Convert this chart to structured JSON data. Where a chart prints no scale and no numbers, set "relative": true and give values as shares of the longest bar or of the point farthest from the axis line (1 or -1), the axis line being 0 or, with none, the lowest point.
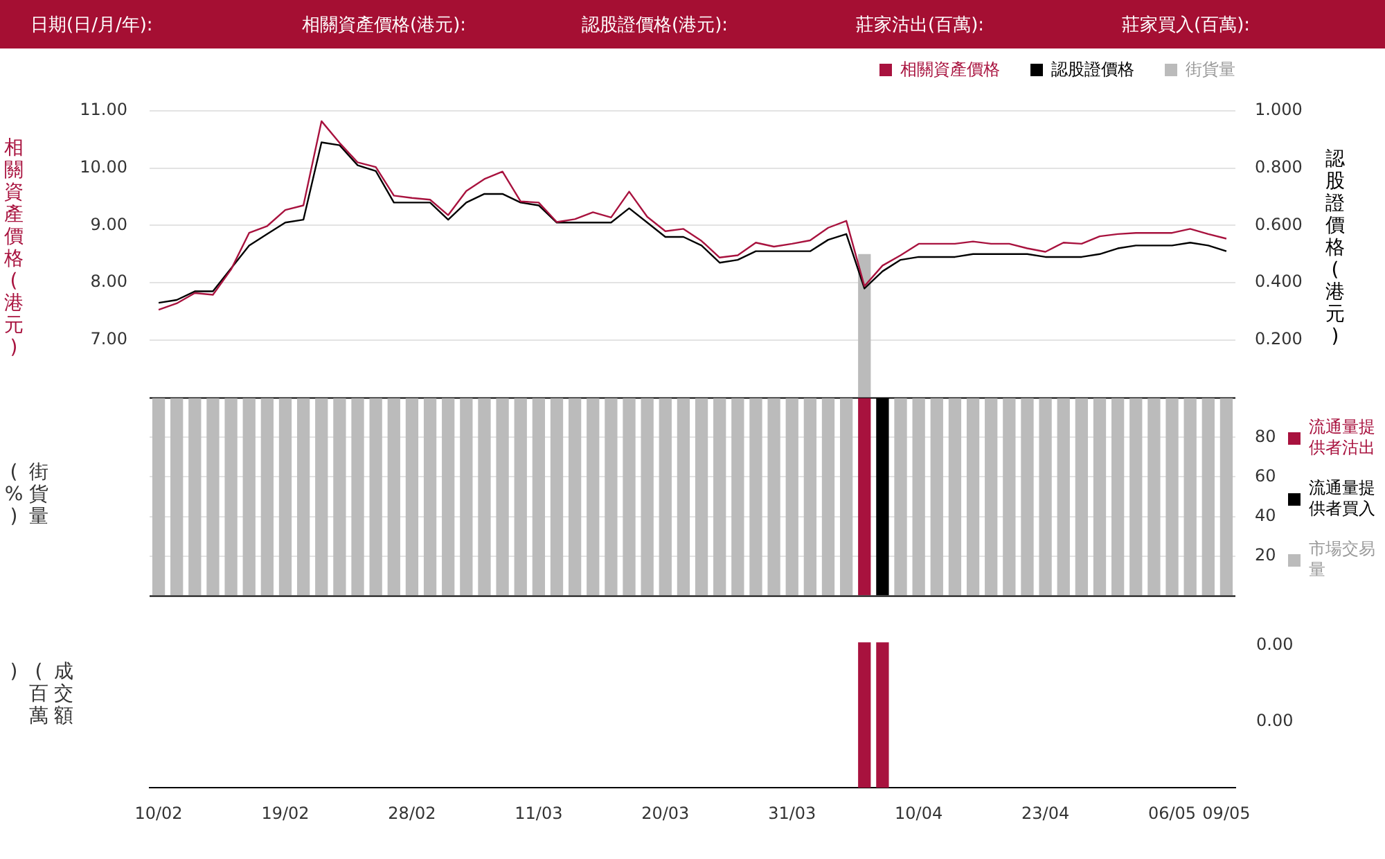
{
  "chart_data": [
    {
      "type": "other",
      "annotations": [
        "日期(日/月/年):",
        "相關資產價格(港元):",
        "認股證價格(港元):",
        "莊家沽出(百萬):",
        "莊家買入(百萬):"
      ]
    },
    {
      "type": "line",
      "ylabel": "相關資產價格(港元)",
      "y2label": "認股證價格(港元)",
      "categories": [
        null,
        null,
        null,
        null,
        null,
        null,
        null,
        null,
        null,
        null,
        null,
        null,
        null,
        null,
        null,
        null,
        null,
        null,
        null,
        null,
        null,
        null,
        null,
        null,
        null,
        null,
        null,
        null,
        null,
        null,
        null,
        null,
        null,
        null,
        null,
        null,
        null,
        null,
        null,
        null,
        null,
        null,
        null,
        null,
        null,
        null,
        null,
        null,
        null,
        null,
        null,
        null,
        null,
        null,
        null,
        null,
        null,
        null,
        null,
        null
      ],
      "series": [
        {
          "name": "相關資產價格",
          "color": "#a8123e",
          "values": [
            7.53,
            7.64,
            7.82,
            7.79,
            8.23,
            8.87,
            8.99,
            9.27,
            9.35,
            10.82,
            10.44,
            10.1,
            10.02,
            9.52,
            9.48,
            9.45,
            9.18,
            9.6,
            9.81,
            9.94,
            9.42,
            9.4,
            9.06,
            9.11,
            9.23,
            9.14,
            9.59,
            9.15,
            8.9,
            8.94,
            8.73,
            8.44,
            8.48,
            8.7,
            8.63,
            8.68,
            8.74,
            8.96,
            9.08,
            7.94,
            8.3,
            8.48,
            8.68,
            8.68,
            8.68,
            8.72,
            8.68,
            8.68,
            8.6,
            8.54,
            8.7,
            8.68,
            8.81,
            8.85,
            8.87,
            8.87,
            8.87,
            8.94,
            8.85,
            8.77
          ]
        },
        {
          "name": "認股證價格",
          "color": "#000000",
          "axis": "y2",
          "values": [
            0.33,
            0.34,
            0.37,
            0.37,
            0.45,
            0.53,
            0.57,
            0.61,
            0.62,
            0.89,
            0.88,
            0.81,
            0.79,
            0.68,
            0.68,
            0.68,
            0.62,
            0.68,
            0.71,
            0.71,
            0.68,
            0.67,
            0.61,
            0.61,
            0.61,
            0.61,
            0.66,
            0.61,
            0.56,
            0.56,
            0.53,
            0.47,
            0.48,
            0.51,
            0.51,
            0.51,
            0.51,
            0.55,
            0.57,
            0.38,
            0.44,
            0.48,
            0.49,
            0.49,
            0.49,
            0.5,
            0.5,
            0.5,
            0.5,
            0.49,
            0.49,
            0.49,
            0.5,
            0.52,
            0.53,
            0.53,
            0.53,
            0.54,
            0.53,
            0.51
          ]
        },
        {
          "name": "街貨量",
          "type": "bar",
          "color": "#bbbbbb",
          "axis": "y2",
          "values": [
            null,
            null,
            null,
            null,
            null,
            null,
            null,
            null,
            null,
            null,
            null,
            null,
            null,
            null,
            null,
            null,
            null,
            null,
            null,
            null,
            null,
            null,
            null,
            null,
            null,
            null,
            null,
            null,
            null,
            null,
            null,
            null,
            null,
            null,
            null,
            null,
            null,
            null,
            null,
            0.5,
            null,
            null,
            null,
            null,
            null,
            null,
            null,
            null,
            null,
            null,
            null,
            null,
            null,
            null,
            null,
            null,
            null,
            null,
            null,
            null
          ]
        }
      ],
      "ylim": [
        6,
        11
      ],
      "yticks": [
        {
          "value": 7,
          "label": "7.00"
        },
        {
          "value": 8,
          "label": "8.00"
        },
        {
          "value": 9,
          "label": "9.00"
        },
        {
          "value": 10,
          "label": "10.00"
        },
        {
          "value": 11,
          "label": "11.00"
        }
      ],
      "y2lim": [
        0,
        1
      ],
      "y2ticks": [
        {
          "value": 0.2,
          "label": "0.200"
        },
        {
          "value": 0.4,
          "label": "0.400"
        },
        {
          "value": 0.6,
          "label": "0.600"
        },
        {
          "value": 0.8,
          "label": "0.800"
        },
        {
          "value": 1,
          "label": "1.000"
        }
      ],
      "grid": "y",
      "legend": "top right",
      "tick_labels": "y"
    },
    {
      "type": "bar",
      "stacked": true,
      "ylabel": "街貨量(%)",
      "categories": [
        null,
        null,
        null,
        null,
        null,
        null,
        null,
        null,
        null,
        null,
        null,
        null,
        null,
        null,
        null,
        null,
        null,
        null,
        null,
        null,
        null,
        null,
        null,
        null,
        null,
        null,
        null,
        null,
        null,
        null,
        null,
        null,
        null,
        null,
        null,
        null,
        null,
        null,
        null,
        null,
        null,
        null,
        null,
        null,
        null,
        null,
        null,
        null,
        null,
        null,
        null,
        null,
        null,
        null,
        null,
        null,
        null,
        null,
        null,
        null
      ],
      "series": [
        {
          "name": "流通量提供者沽出",
          "color": "#a8123e",
          "values": [
            null,
            null,
            null,
            null,
            null,
            null,
            null,
            null,
            null,
            null,
            null,
            null,
            null,
            null,
            null,
            null,
            null,
            null,
            null,
            null,
            null,
            null,
            null,
            null,
            null,
            null,
            null,
            null,
            null,
            null,
            null,
            null,
            null,
            null,
            null,
            null,
            null,
            null,
            null,
            100,
            null,
            null,
            null,
            null,
            null,
            null,
            null,
            null,
            null,
            null,
            null,
            null,
            null,
            null,
            null,
            null,
            null,
            null,
            null,
            null
          ]
        },
        {
          "name": "流通量提供者買入",
          "color": "#000000",
          "values": [
            null,
            null,
            null,
            null,
            null,
            null,
            null,
            null,
            null,
            null,
            null,
            null,
            null,
            null,
            null,
            null,
            null,
            null,
            null,
            null,
            null,
            null,
            null,
            null,
            null,
            null,
            null,
            null,
            null,
            null,
            null,
            null,
            null,
            null,
            null,
            null,
            null,
            null,
            null,
            null,
            100,
            null,
            null,
            null,
            null,
            null,
            null,
            null,
            null,
            null,
            null,
            null,
            null,
            null,
            null,
            null,
            null,
            null,
            null,
            null
          ]
        },
        {
          "name": "市場交易量",
          "color": "#bbbbbb",
          "values": [
            100,
            100,
            100,
            100,
            100,
            100,
            100,
            100,
            100,
            100,
            100,
            100,
            100,
            100,
            100,
            100,
            100,
            100,
            100,
            100,
            100,
            100,
            100,
            100,
            100,
            100,
            100,
            100,
            100,
            100,
            100,
            100,
            100,
            100,
            100,
            100,
            100,
            100,
            100,
            null,
            null,
            100,
            100,
            100,
            100,
            100,
            100,
            100,
            100,
            100,
            100,
            100,
            100,
            100,
            100,
            100,
            100,
            100,
            100,
            100
          ]
        }
      ],
      "ylim": [
        0,
        100
      ],
      "yticks": [
        20,
        40,
        60,
        80
      ],
      "grid": "y",
      "legend": "right",
      "tick_labels": "y"
    },
    {
      "type": "bar",
      "relative": true,
      "ylabel": "成交額(百萬)",
      "annotations": [
        "0.00",
        "0.00"
      ],
      "categories": [
        "10/02",
        null,
        null,
        null,
        null,
        null,
        null,
        "19/02",
        null,
        null,
        null,
        null,
        null,
        null,
        "28/02",
        null,
        null,
        null,
        null,
        null,
        null,
        "11/03",
        null,
        null,
        null,
        null,
        null,
        null,
        "20/03",
        null,
        null,
        null,
        null,
        null,
        null,
        "31/03",
        null,
        null,
        null,
        null,
        null,
        null,
        "10/04",
        null,
        null,
        null,
        null,
        null,
        null,
        "23/04",
        null,
        null,
        null,
        null,
        null,
        null,
        "06/05",
        null,
        null,
        "09/05"
      ],
      "series": [
        {
          "color": "#a8123e",
          "values": [
            null,
            null,
            null,
            null,
            null,
            null,
            null,
            null,
            null,
            null,
            null,
            null,
            null,
            null,
            null,
            null,
            null,
            null,
            null,
            null,
            null,
            null,
            null,
            null,
            null,
            null,
            null,
            null,
            null,
            null,
            null,
            null,
            null,
            null,
            null,
            null,
            null,
            null,
            null,
            1,
            1,
            null,
            null,
            null,
            null,
            null,
            null,
            null,
            null,
            null,
            null,
            null,
            null,
            null,
            null,
            null,
            null,
            null,
            null,
            null
          ]
        }
      ]
    }
  ]
}
